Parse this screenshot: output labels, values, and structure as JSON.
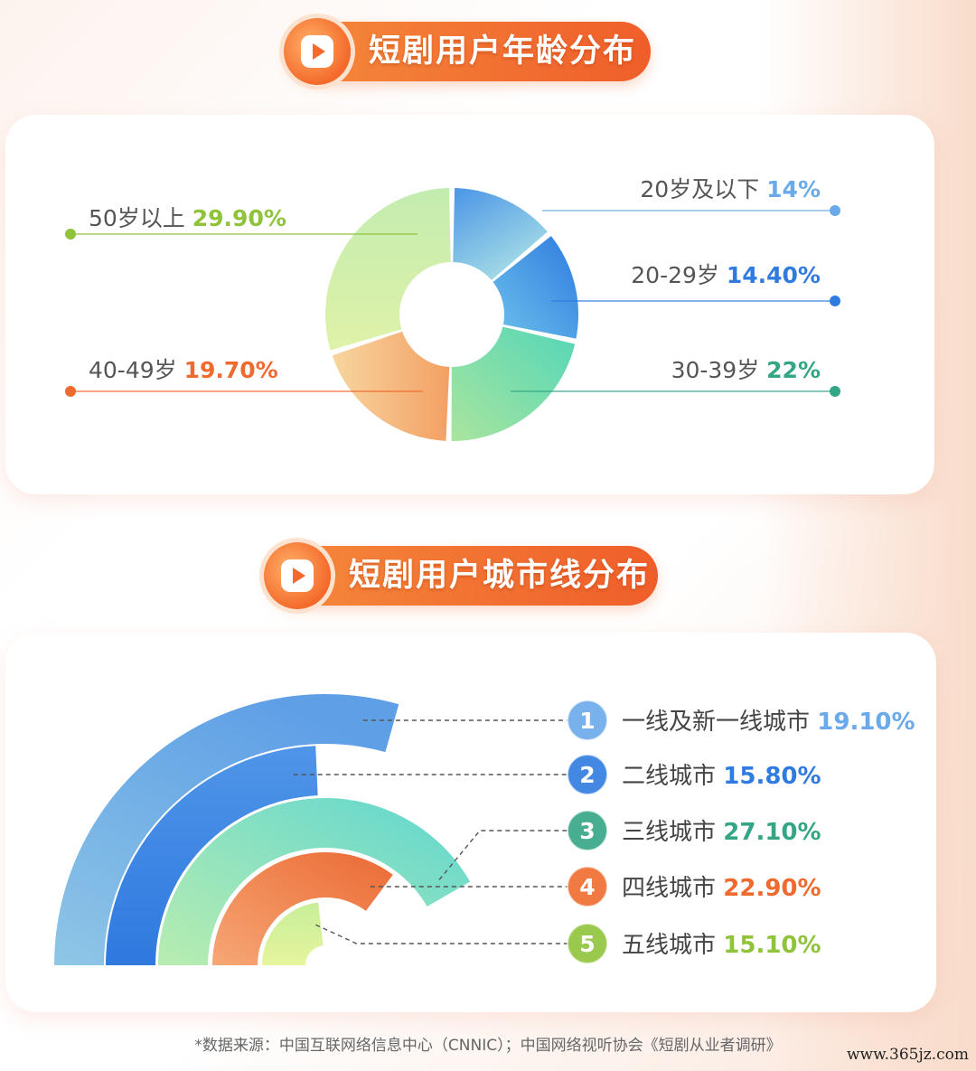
{
  "age_title": "短剧用户年龄分布",
  "city_title": "短剧用户城市线分布",
  "colors": {
    "orange": "#ef6a2e",
    "light_blue": "#6aa9ea",
    "blue": "#2f7be0",
    "teal": "#34a585",
    "olive": "#8ec33a"
  },
  "icons": {
    "title_badge": "play-icon"
  },
  "chart_data": [
    {
      "type": "pie",
      "variant": "donut",
      "categories": [
        "20岁及以下",
        "20-29岁",
        "30-39岁",
        "40-49岁",
        "50岁以上"
      ],
      "values": [
        14,
        14.4,
        22,
        19.7,
        29.9
      ],
      "value_labels": [
        "14%",
        "14.40%",
        "22%",
        "19.70%",
        "29.90%"
      ],
      "label_colors": [
        "#6aa9ea",
        "#2f7be0",
        "#34a585",
        "#ef6a2e",
        "#8ec33a"
      ]
    },
    {
      "type": "bar",
      "variant": "radial",
      "ranks": [
        "1",
        "2",
        "3",
        "4",
        "5"
      ],
      "categories": [
        "一线及新一线城市",
        "二线城市",
        "三线城市",
        "四线城市",
        "五线城市"
      ],
      "values": [
        19.1,
        15.8,
        27.1,
        22.9,
        15.1
      ],
      "value_labels": [
        "19.10%",
        "15.80%",
        "27.10%",
        "22.90%",
        "15.10%"
      ],
      "label_colors": [
        "#6aa9ea",
        "#2f7be0",
        "#34a585",
        "#ef6a2e",
        "#8ec33a"
      ]
    }
  ],
  "footnote": "*数据来源：中国互联网络信息中心（CNNIC）；中国网络视听协会《短剧从业者调研》",
  "watermark": "www.365jz.com"
}
